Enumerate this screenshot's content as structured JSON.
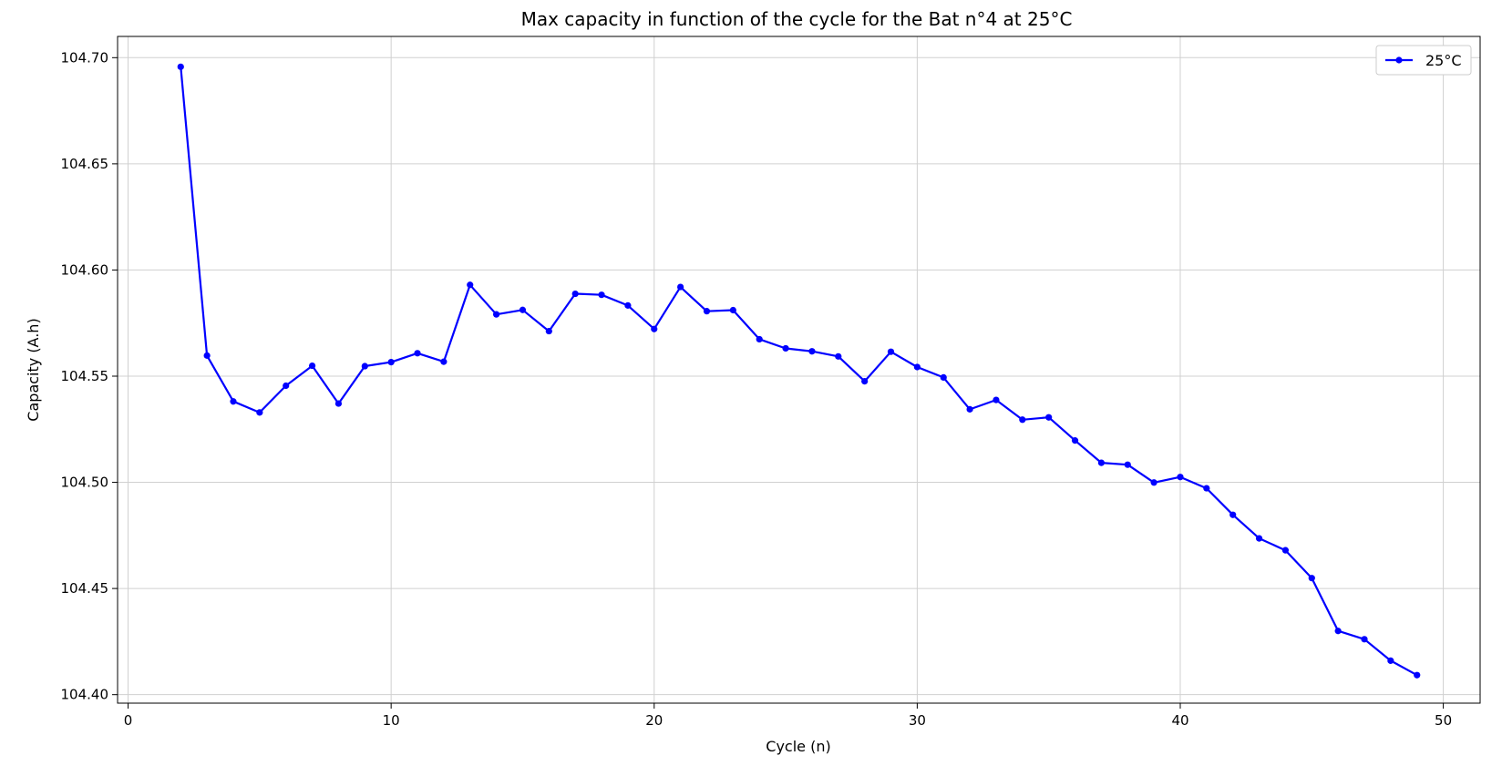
{
  "chart_data": {
    "type": "line",
    "title": "Max capacity in function of the cycle for the Bat n°4 at 25°C",
    "xlabel": "Cycle (n)",
    "ylabel": "Capacity (A.h)",
    "xlim": [
      -0.4,
      51.4
    ],
    "ylim": [
      104.396,
      104.71
    ],
    "xticks": [
      0,
      10,
      20,
      30,
      40,
      50
    ],
    "xtick_labels": [
      "0",
      "10",
      "20",
      "30",
      "40",
      "50"
    ],
    "yticks": [
      104.4,
      104.45,
      104.5,
      104.55,
      104.6,
      104.65,
      104.7
    ],
    "ytick_labels": [
      "104.40",
      "104.45",
      "104.50",
      "104.55",
      "104.60",
      "104.65",
      "104.70"
    ],
    "grid": true,
    "legend_position": "top-right",
    "series": [
      {
        "name": "25°C",
        "color": "#0000ff",
        "marker": "dot",
        "x": [
          2,
          3,
          4,
          5,
          6,
          7,
          8,
          9,
          10,
          11,
          12,
          13,
          14,
          15,
          16,
          17,
          18,
          19,
          20,
          21,
          22,
          23,
          24,
          25,
          26,
          27,
          28,
          29,
          30,
          31,
          32,
          33,
          34,
          35,
          36,
          37,
          38,
          39,
          40,
          41,
          42,
          43,
          44,
          45,
          46,
          47,
          48,
          49
        ],
        "y": [
          104.6957,
          104.5597,
          104.5381,
          104.5329,
          104.5455,
          104.5549,
          104.5371,
          104.5547,
          104.5566,
          104.5608,
          104.5568,
          104.593,
          104.5791,
          104.5812,
          104.5712,
          104.5888,
          104.5883,
          104.5833,
          104.5722,
          104.592,
          104.5806,
          104.5811,
          104.5674,
          104.5631,
          104.5617,
          104.5593,
          104.5476,
          104.5615,
          104.5543,
          104.5494,
          104.5344,
          104.5388,
          104.5295,
          104.5306,
          104.5197,
          104.5092,
          104.5083,
          104.4999,
          104.5025,
          104.4972,
          104.4847,
          104.4736,
          104.468,
          104.4549,
          104.43,
          104.4261,
          104.416,
          104.4092
        ]
      }
    ]
  }
}
